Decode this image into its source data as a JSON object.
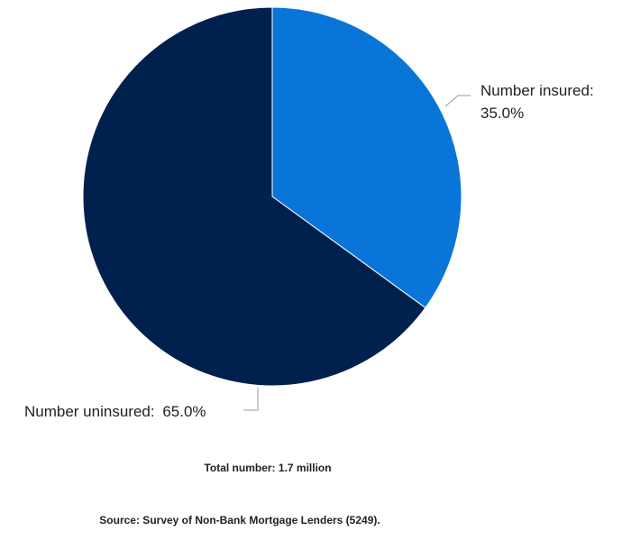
{
  "chart_data": {
    "type": "pie",
    "slices": [
      {
        "label": "Number insured:",
        "value": 35.0,
        "display": "35.0%",
        "color": "#0A75D8"
      },
      {
        "label": "Number uninsured:",
        "value": 65.0,
        "display": "65.0%",
        "color": "#00204E"
      }
    ],
    "start_angle_deg": 0,
    "direction": "clockwise",
    "legend": "none",
    "labels": "outside-with-leader-lines"
  },
  "notes": {
    "total": "Total number: 1.7 million",
    "source": "Source: Survey of Non-Bank Mortgage Lenders (5249)."
  }
}
